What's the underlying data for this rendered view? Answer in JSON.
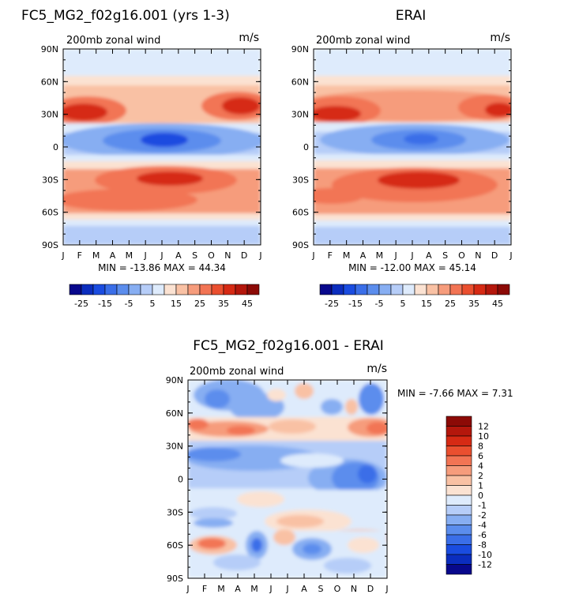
{
  "chart_data": [
    {
      "type": "heatmap",
      "panel": "model",
      "title": "FC5_MG2_f02g16.001 (yrs 1-3)",
      "subtitle": "200mb zonal wind",
      "units": "m/s",
      "x_ticklabels": [
        "J",
        "F",
        "M",
        "A",
        "M",
        "J",
        "J",
        "A",
        "S",
        "O",
        "N",
        "D",
        "J"
      ],
      "y_ticklabels": [
        "90N",
        "60N",
        "30N",
        "0",
        "30S",
        "60S",
        "90S"
      ],
      "y_values": [
        90,
        60,
        30,
        0,
        -30,
        -60,
        -90
      ],
      "stats": "MIN = -13.86  MAX =  44.34",
      "min": -13.86,
      "max": 44.34
    },
    {
      "type": "heatmap",
      "panel": "obs",
      "title": "ERAI",
      "subtitle": "200mb zonal wind",
      "units": "m/s",
      "x_ticklabels": [
        "J",
        "F",
        "M",
        "A",
        "M",
        "J",
        "J",
        "A",
        "S",
        "O",
        "N",
        "D",
        "J"
      ],
      "y_ticklabels": [
        "90N",
        "60N",
        "30N",
        "0",
        "30S",
        "60S",
        "90S"
      ],
      "y_values": [
        90,
        60,
        30,
        0,
        -30,
        -60,
        -90
      ],
      "stats": "MIN = -12.00  MAX =  45.14",
      "min": -12.0,
      "max": 45.14
    },
    {
      "type": "heatmap",
      "panel": "diff",
      "title": "FC5_MG2_f02g16.001 - ERAI",
      "subtitle": "200mb zonal wind",
      "units": "m/s",
      "x_ticklabels": [
        "J",
        "F",
        "M",
        "A",
        "M",
        "J",
        "J",
        "A",
        "S",
        "O",
        "N",
        "D",
        "J"
      ],
      "y_ticklabels": [
        "90N",
        "60N",
        "30N",
        "0",
        "30S",
        "60S",
        "90S"
      ],
      "y_values": [
        90,
        60,
        30,
        0,
        -30,
        -60,
        -90
      ],
      "stats": "MIN =   -7.66  MAX =    7.31",
      "min": -7.66,
      "max": 7.31
    }
  ],
  "colorbar_main": {
    "orientation": "horizontal",
    "levels": [
      -25,
      -20,
      -15,
      -10,
      -5,
      0,
      5,
      10,
      15,
      20,
      25,
      30,
      35,
      40,
      45
    ],
    "labels": [
      "-25",
      "-15",
      "-5",
      "5",
      "15",
      "25",
      "35",
      "45"
    ],
    "colors": [
      "#08088c",
      "#0b2dbe",
      "#1a4ce0",
      "#3a6ee8",
      "#5b8ded",
      "#87aef2",
      "#b6cdf8",
      "#deebfc",
      "#fbe2d2",
      "#f9c1a4",
      "#f69c7c",
      "#f27454",
      "#ea4f2f",
      "#d62a14",
      "#b4170c",
      "#8c0a06"
    ]
  },
  "colorbar_diff": {
    "orientation": "vertical",
    "labels": [
      "12",
      "10",
      "8",
      "6",
      "4",
      "2",
      "1",
      "0",
      "-1",
      "-2",
      "-4",
      "-6",
      "-8",
      "-10",
      "-12"
    ],
    "colors": [
      "#8c0a06",
      "#b4170c",
      "#d62a14",
      "#ea4f2f",
      "#f27454",
      "#f69c7c",
      "#f9c1a4",
      "#fbe2d2",
      "#deebfc",
      "#b6cdf8",
      "#87aef2",
      "#5b8ded",
      "#3a6ee8",
      "#1a4ce0",
      "#0b2dbe",
      "#08088c"
    ]
  }
}
